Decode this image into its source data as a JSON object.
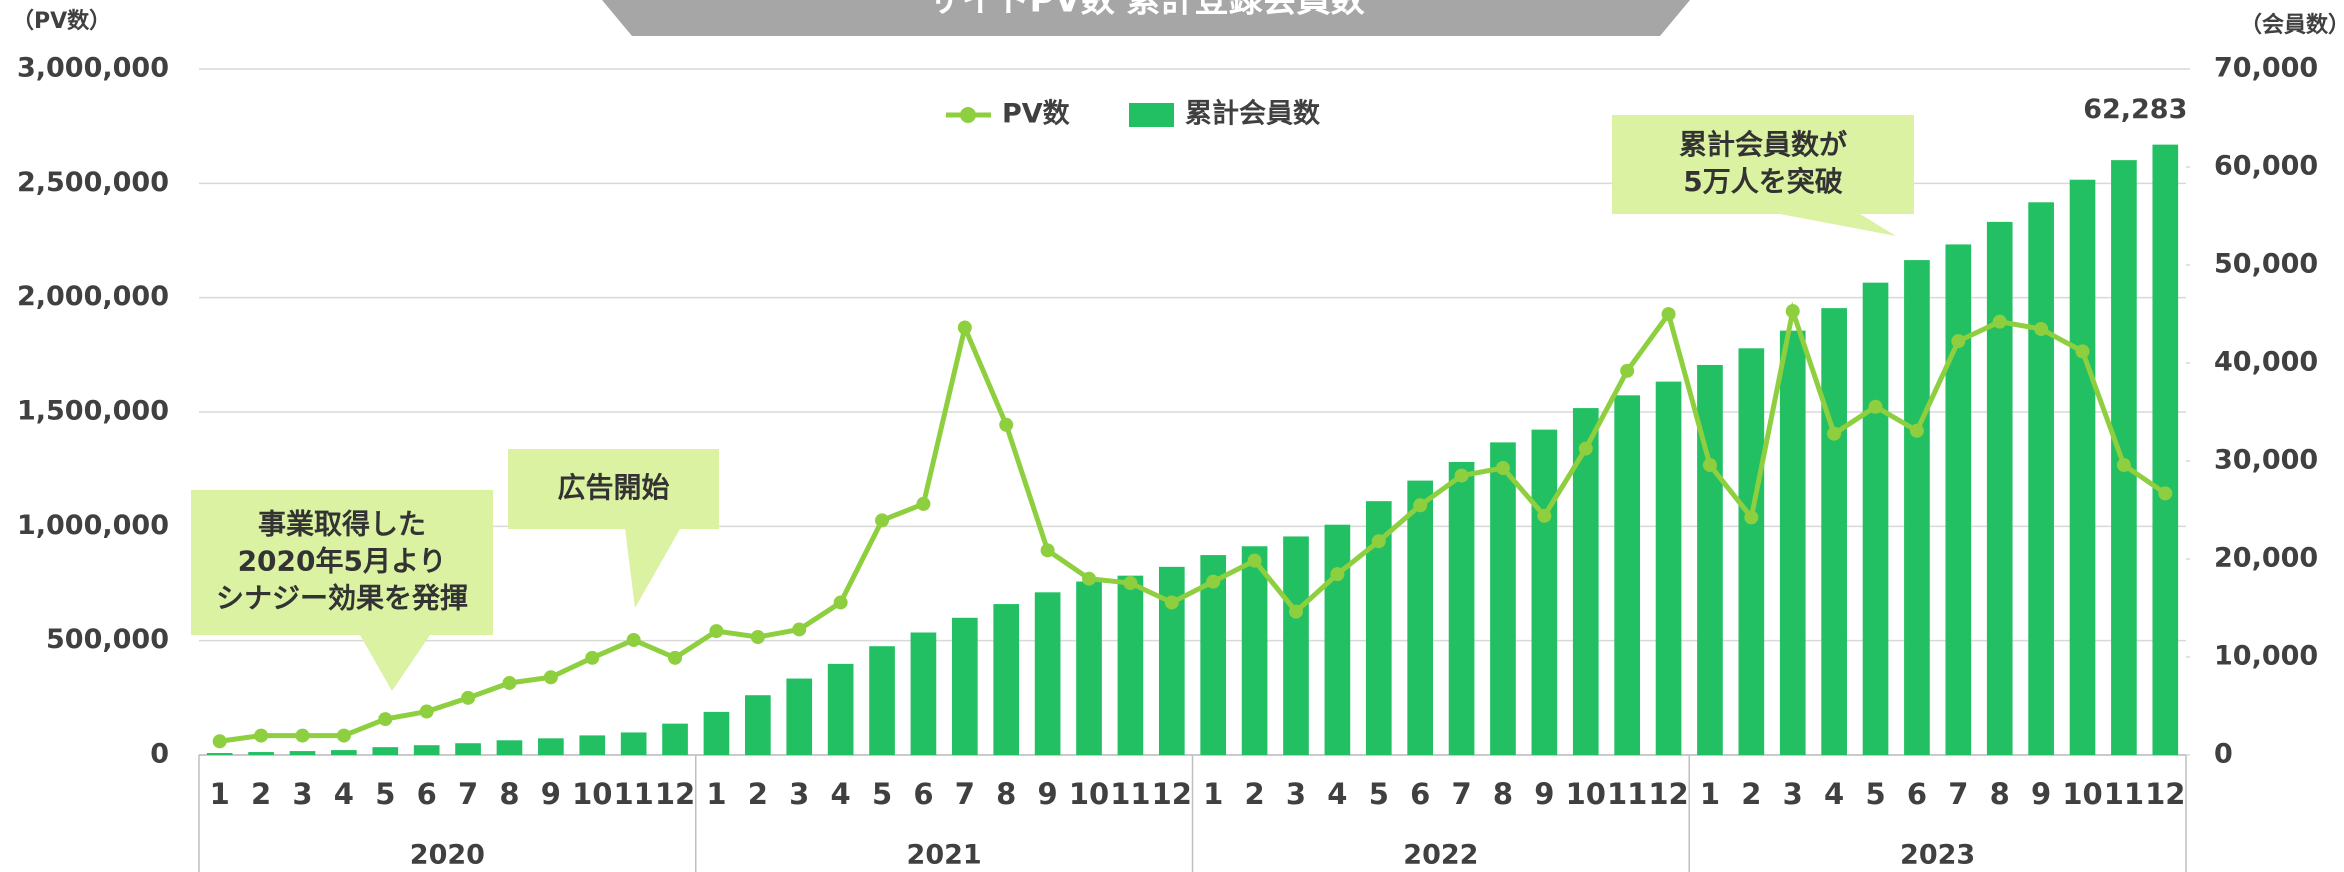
{
  "chart_data": {
    "type": "bar-line",
    "title": "サイトPV数 累計登録会員数",
    "ylabel": "（PV数）",
    "y2label": "（会員数）",
    "categories": [
      "1",
      "2",
      "3",
      "4",
      "5",
      "6",
      "7",
      "8",
      "9",
      "10",
      "11",
      "12",
      "1",
      "2",
      "3",
      "4",
      "5",
      "6",
      "7",
      "8",
      "9",
      "10",
      "11",
      "12",
      "1",
      "2",
      "3",
      "4",
      "5",
      "6",
      "7",
      "8",
      "9",
      "10",
      "11",
      "12",
      "1",
      "2",
      "3",
      "4",
      "5",
      "6",
      "7",
      "8",
      "9",
      "10",
      "11",
      "12"
    ],
    "groups": [
      "2020",
      "2021",
      "2022",
      "2023"
    ],
    "series": [
      {
        "name": "PV数",
        "type": "line",
        "color": "#8dcf3f",
        "axis": "y",
        "values": [
          60000,
          85000,
          85000,
          85000,
          157000,
          190000,
          250000,
          315000,
          340000,
          425000,
          503000,
          425000,
          542000,
          516000,
          549000,
          667000,
          1026000,
          1098000,
          1869000,
          1444000,
          895000,
          771000,
          752000,
          667000,
          758000,
          850000,
          627000,
          791000,
          935000,
          1092000,
          1222000,
          1255000,
          1046000,
          1340000,
          1680000,
          1928000,
          1268000,
          1039000,
          1941000,
          1405000,
          1523000,
          1418000,
          1810000,
          1895000,
          1863000,
          1765000,
          1268000,
          1144000
        ]
      },
      {
        "name": "累計会員数",
        "type": "bar",
        "color": "#22bf63",
        "axis": "y2",
        "values": [
          200,
          300,
          400,
          500,
          800,
          1000,
          1200,
          1500,
          1700,
          2000,
          2300,
          3200,
          4400,
          6100,
          7800,
          9300,
          11100,
          12500,
          14000,
          15400,
          16600,
          17700,
          18300,
          19200,
          20400,
          21300,
          22300,
          23500,
          25900,
          28000,
          29900,
          31900,
          33200,
          35400,
          36700,
          38100,
          39800,
          41500,
          43300,
          45600,
          48200,
          50500,
          52100,
          54400,
          56400,
          58700,
          60700,
          62283
        ],
        "value_labels": {
          "47": "62,283"
        }
      }
    ],
    "ylim": [
      0,
      3000000
    ],
    "yticks": [
      {
        "value": 0,
        "label": "0"
      },
      {
        "value": 500000,
        "label": "500,000"
      },
      {
        "value": 1000000,
        "label": "1,000,000"
      },
      {
        "value": 1500000,
        "label": "1,500,000"
      },
      {
        "value": 2000000,
        "label": "2,000,000"
      },
      {
        "value": 2500000,
        "label": "2,500,000"
      },
      {
        "value": 3000000,
        "label": "3,000,000"
      }
    ],
    "y2lim": [
      0,
      70000
    ],
    "y2ticks": [
      {
        "value": 0,
        "label": "0"
      },
      {
        "value": 10000,
        "label": "10,000"
      },
      {
        "value": 20000,
        "label": "20,000"
      },
      {
        "value": 30000,
        "label": "30,000"
      },
      {
        "value": 40000,
        "label": "40,000"
      },
      {
        "value": 50000,
        "label": "50,000"
      },
      {
        "value": 60000,
        "label": "60,000"
      },
      {
        "value": 70000,
        "label": "70,000"
      }
    ],
    "grid": true,
    "legend": "top",
    "annotations": [
      {
        "lines": [
          "事業取得した",
          "2020年5月より",
          "シナジー効果を発揮"
        ]
      },
      {
        "lines": [
          "広告開始"
        ]
      },
      {
        "lines": [
          "累計会員数が",
          "5万人を突破"
        ]
      }
    ]
  }
}
